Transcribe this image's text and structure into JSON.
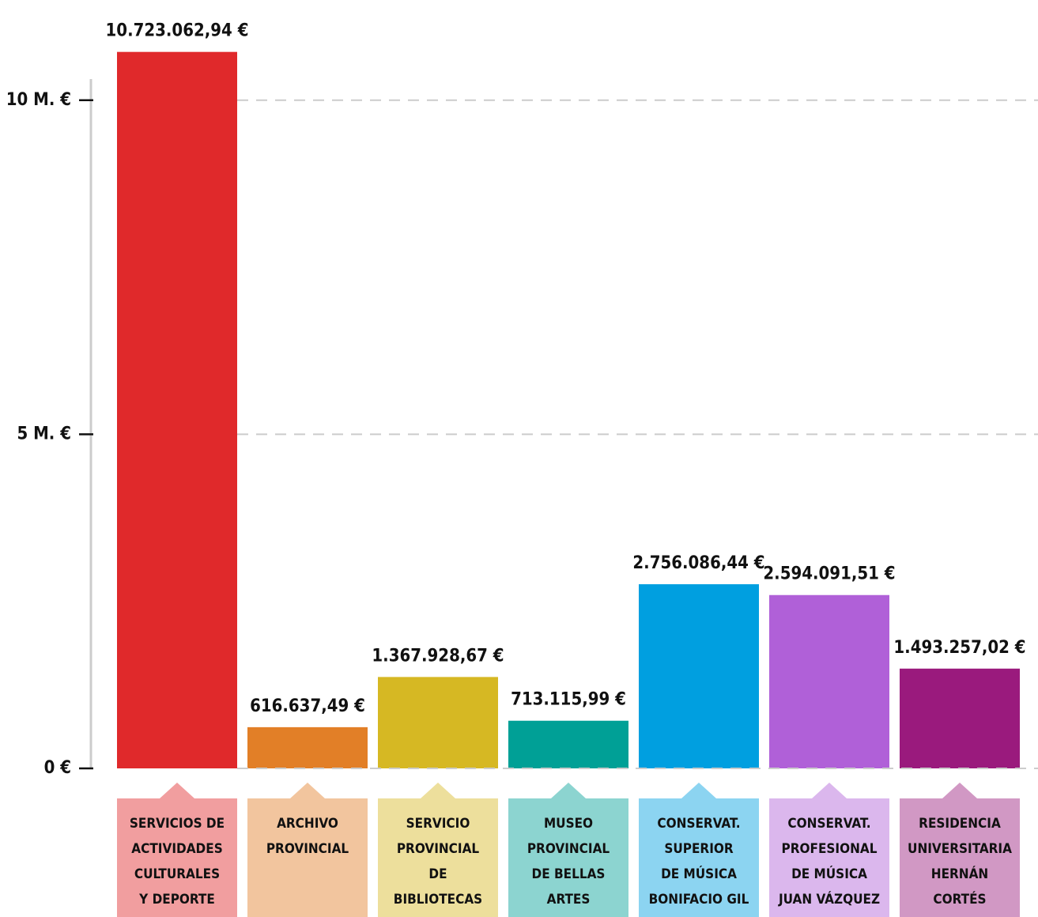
{
  "chart_data": {
    "type": "bar",
    "categories": [
      [
        "SERVICIOS DE",
        "ACTIVIDADES",
        "CULTURALES",
        "Y DEPORTE"
      ],
      [
        "ARCHIVO",
        "PROVINCIAL"
      ],
      [
        "SERVICIO",
        "PROVINCIAL",
        "DE",
        "BIBLIOTECAS"
      ],
      [
        "MUSEO",
        "PROVINCIAL",
        "DE BELLAS",
        "ARTES"
      ],
      [
        "CONSERVAT.",
        "SUPERIOR",
        "DE MÚSICA",
        "BONIFACIO GIL"
      ],
      [
        "CONSERVAT.",
        "PROFESIONAL",
        "DE MÚSICA",
        "JUAN VÁZQUEZ"
      ],
      [
        "RESIDENCIA",
        "UNIVERSITARIA",
        "HERNÁN",
        "CORTÉS"
      ]
    ],
    "values": [
      10723062.94,
      616637.49,
      1367928.67,
      713115.99,
      2756086.44,
      2594091.51,
      1493257.02
    ],
    "value_labels": [
      "10.723.062,94 €",
      "616.637,49 €",
      "1.367.928,67 €",
      "713.115,99 €",
      "2.756.086,44 €",
      "2.594.091,51 €",
      "1.493.257,02 €"
    ],
    "colors": [
      "#e0292b",
      "#e27f27",
      "#d6b823",
      "#00a096",
      "#009fe0",
      "#b060d8",
      "#9a1a7d"
    ],
    "ylim": [
      0,
      11500000
    ],
    "yticks": [
      {
        "value": 0,
        "label": "0 €"
      },
      {
        "value": 5000000,
        "label": "5 M. €"
      },
      {
        "value": 10000000,
        "label": "10 M. €"
      }
    ],
    "grid": true
  }
}
